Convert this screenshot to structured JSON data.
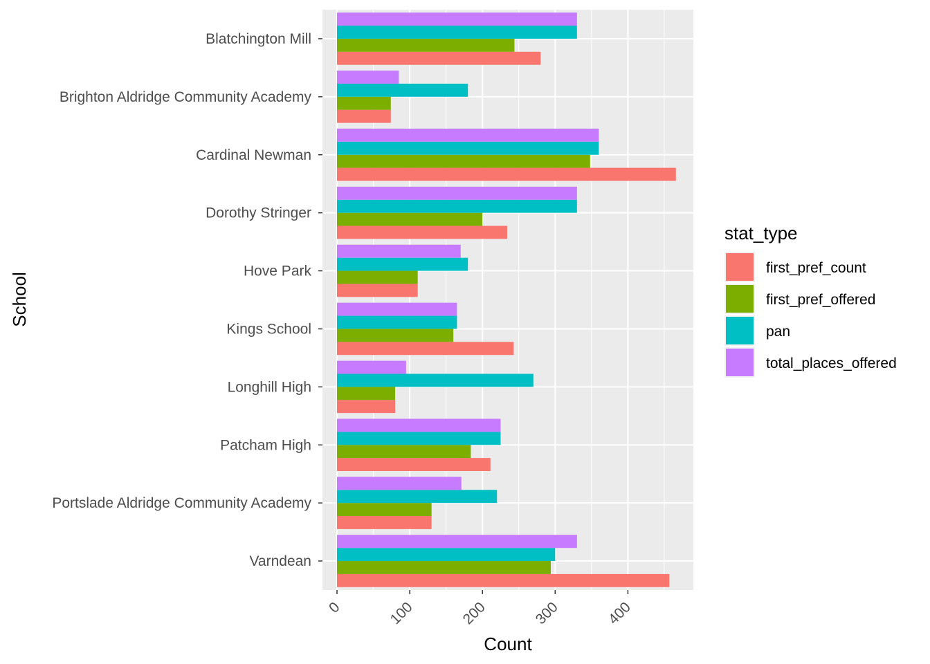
{
  "chart_data": {
    "type": "bar",
    "orientation": "horizontal",
    "title": "",
    "xlabel": "Count",
    "ylabel": "School",
    "xlim": [
      -20,
      490
    ],
    "x_ticks": [
      0,
      100,
      200,
      300,
      400
    ],
    "grid": true,
    "legend_title": "stat_type",
    "legend_position": "right",
    "categories": [
      "Blatchington Mill",
      "Brighton Aldridge Community Academy",
      "Cardinal Newman",
      "Dorothy Stringer",
      "Hove Park",
      "Kings School",
      "Longhill High",
      "Patcham High",
      "Portslade Aldridge Community Academy",
      "Varndean"
    ],
    "series": [
      {
        "name": "first_pref_count",
        "color": "#F8766D",
        "values": [
          280,
          74,
          466,
          234,
          111,
          243,
          80,
          211,
          130,
          457
        ]
      },
      {
        "name": "first_pref_offered",
        "color": "#7CAE00",
        "values": [
          244,
          74,
          348,
          200,
          111,
          160,
          80,
          184,
          130,
          294
        ]
      },
      {
        "name": "pan",
        "color": "#00BFC4",
        "values": [
          330,
          180,
          360,
          330,
          180,
          165,
          270,
          225,
          220,
          300
        ]
      },
      {
        "name": "total_places_offered",
        "color": "#C77CFF",
        "values": [
          330,
          85,
          360,
          330,
          170,
          165,
          95,
          225,
          171,
          330
        ]
      }
    ]
  }
}
